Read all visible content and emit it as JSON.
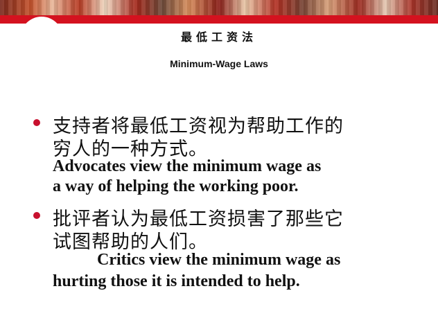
{
  "slide": {
    "title_cn": "最低工资法",
    "title_en": "Minimum-Wage Laws",
    "bullets": [
      {
        "cn_lines": [
          "支持者将最低工资视为帮助工作的",
          "穷人的一种方式。"
        ],
        "en_lines": [
          "Advocates view the minimum wage as",
          "a way of helping the working poor."
        ]
      },
      {
        "cn_lines": [
          "批评者认为最低工资损害了那些它",
          "试图帮助的人们。"
        ],
        "en_lines": [
          "Critics view the minimum wage as",
          "hurting those it is intended to help."
        ]
      }
    ]
  },
  "colors": {
    "accent_red": "#d4121f",
    "bullet_red": "#c8102e",
    "text": "#111111"
  }
}
